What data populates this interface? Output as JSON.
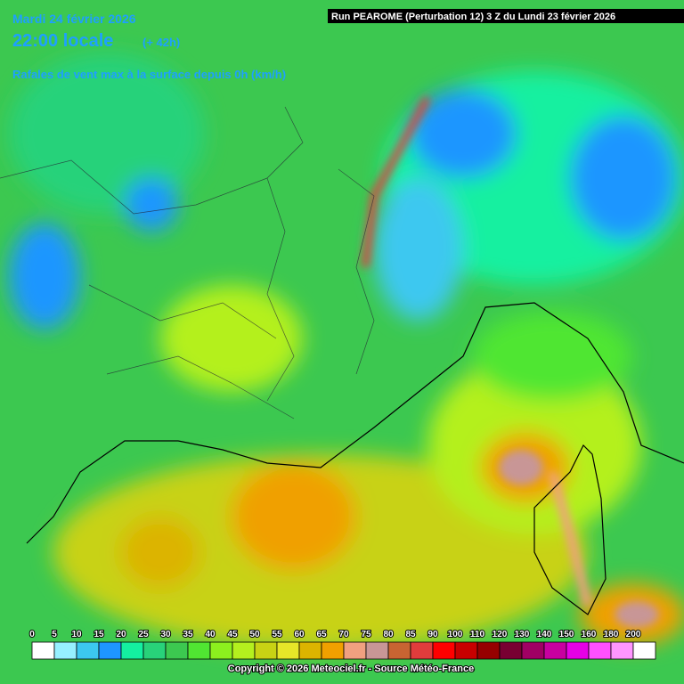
{
  "header": {
    "date": "Mardi 24 février 2026",
    "time": "22:00 locale",
    "lead": "(+ 42h)",
    "parameter": "Rafales de vent max à la surface depuis 0h (km/h)",
    "run": "Run PEAROME (Perturbation 12) 3 Z du Lundi 23 février 2026"
  },
  "legend": {
    "labels": [
      0,
      5,
      10,
      15,
      20,
      25,
      30,
      35,
      40,
      45,
      50,
      55,
      60,
      65,
      70,
      75,
      80,
      85,
      90,
      100,
      110,
      120,
      130,
      140,
      150,
      160,
      180,
      200
    ],
    "colors": [
      "#ffffff",
      "#96f0ff",
      "#3cc8f0",
      "#1e96ff",
      "#14f0a0",
      "#28d27a",
      "#3cc850",
      "#50e632",
      "#8cf01e",
      "#b4f01e",
      "#c8d214",
      "#e6e628",
      "#dcb400",
      "#f0a000",
      "#f0a080",
      "#c89696",
      "#c86432",
      "#e03c3c",
      "#ff0000",
      "#c80000",
      "#960000",
      "#780032",
      "#a00064",
      "#c800a0",
      "#e600e6",
      "#ff50ff",
      "#ff96ff",
      "#ffffff"
    ]
  },
  "footer": {
    "copyright": "Copyright © 2026 Meteociel.fr - Source Météo-France"
  }
}
